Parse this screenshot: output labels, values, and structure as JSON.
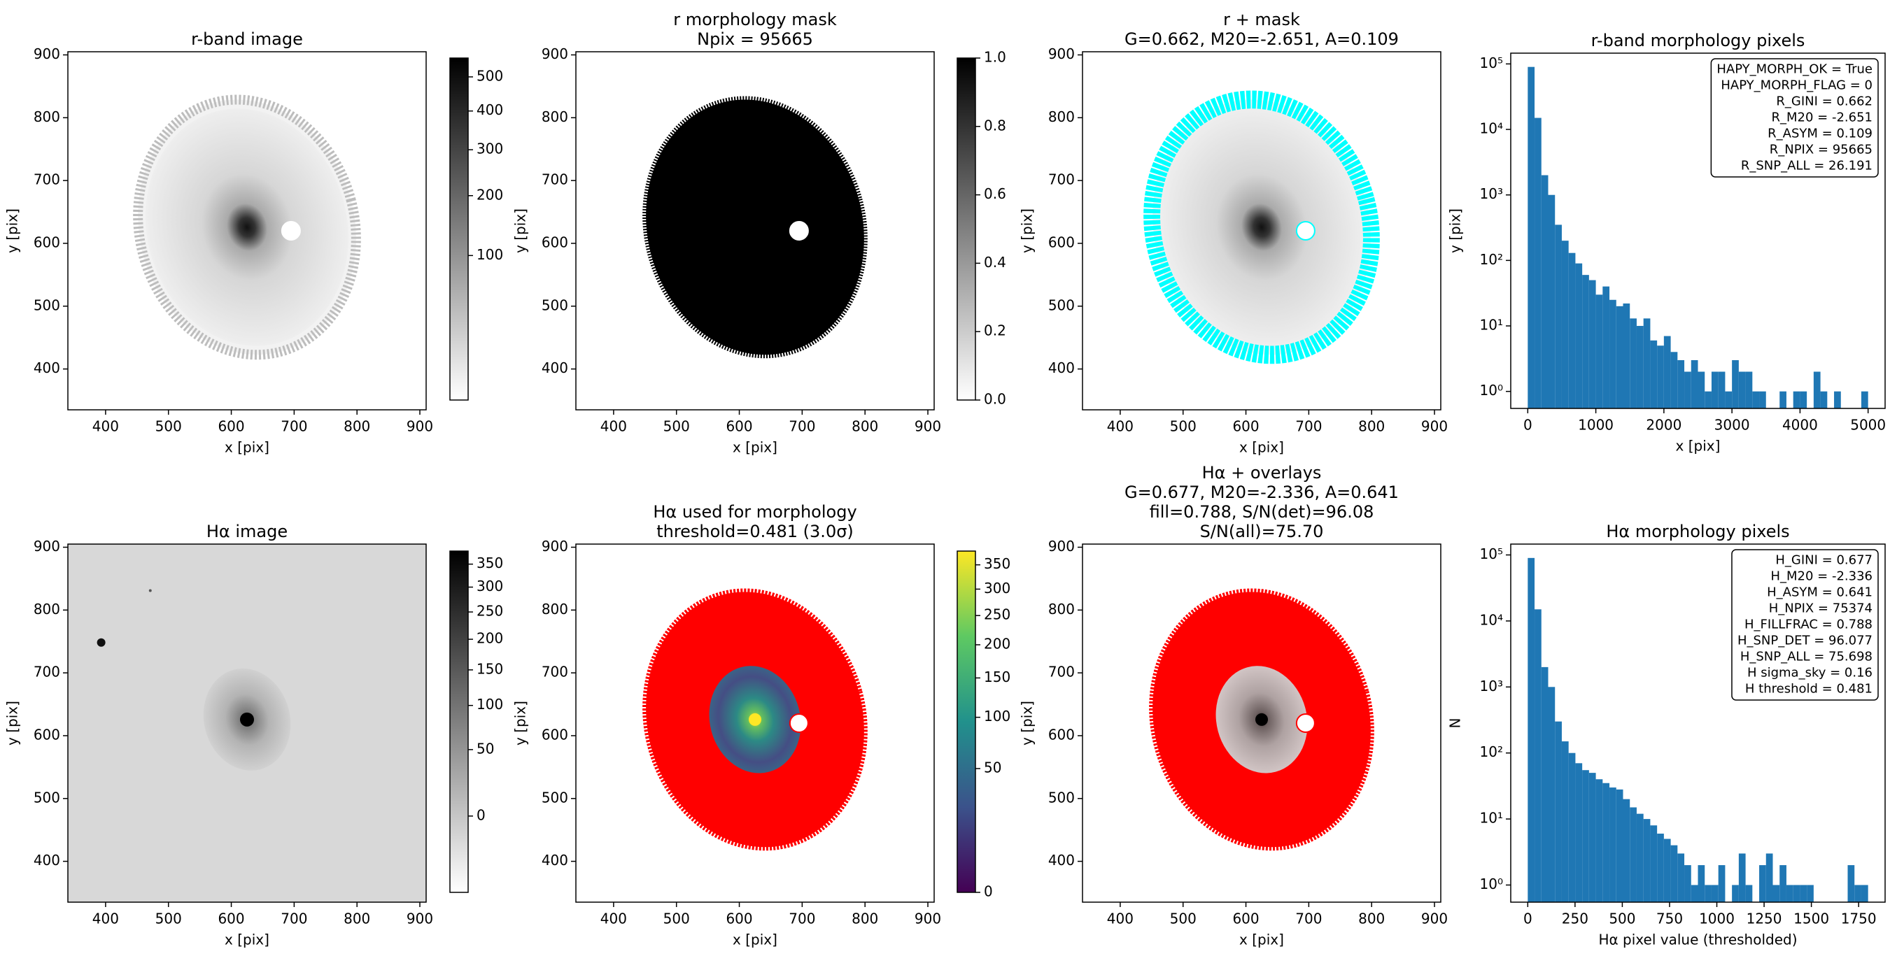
{
  "chart_data": [
    {
      "type": "image",
      "title": [
        "r-band image"
      ],
      "xlabel": "x [pix]",
      "ylabel": "y [pix]",
      "xlim": [
        340,
        910
      ],
      "ylim": [
        335,
        905
      ],
      "xticks": [
        400,
        500,
        600,
        700,
        800,
        900
      ],
      "yticks": [
        400,
        500,
        600,
        700,
        800,
        900
      ],
      "marker": {
        "x": 695,
        "y": 620
      },
      "colorbar": {
        "lim": [
          0,
          560
        ],
        "scale": "sqrt",
        "cmap": "gray_r",
        "ticks": [
          100,
          200,
          300,
          400,
          500
        ]
      }
    },
    {
      "type": "image",
      "title": [
        "r morphology mask",
        "Npix = 95665"
      ],
      "xlabel": "x [pix]",
      "ylabel": "y [pix]",
      "xlim": [
        340,
        910
      ],
      "ylim": [
        335,
        905
      ],
      "xticks": [
        400,
        500,
        600,
        700,
        800,
        900
      ],
      "yticks": [
        400,
        500,
        600,
        700,
        800,
        900
      ],
      "marker": {
        "x": 695,
        "y": 620
      },
      "colorbar": {
        "lim": [
          0,
          1
        ],
        "scale": "linear",
        "cmap": "gray_r",
        "ticks": [
          {
            "value": 0,
            "label": "0.0"
          },
          {
            "value": 0.2,
            "label": "0.2"
          },
          {
            "value": 0.4,
            "label": "0.4"
          },
          {
            "value": 0.6,
            "label": "0.6"
          },
          {
            "value": 0.8,
            "label": "0.8"
          },
          {
            "value": 1,
            "label": "1.0"
          }
        ]
      }
    },
    {
      "type": "image",
      "title": [
        "r + mask",
        "G=0.662, M20=-2.651, A=0.109"
      ],
      "xlabel": "x [pix]",
      "ylabel": "y [pix]",
      "xlim": [
        340,
        910
      ],
      "ylim": [
        335,
        905
      ],
      "xticks": [
        400,
        500,
        600,
        700,
        800,
        900
      ],
      "yticks": [
        400,
        500,
        600,
        700,
        800,
        900
      ],
      "marker": {
        "x": 695,
        "y": 620
      }
    },
    {
      "type": "histogram",
      "title": [
        "r-band morphology pixels"
      ],
      "xlabel": "x [pix]",
      "ylabel": "y [pix]",
      "color": "#1f77b4",
      "bins": [
        0,
        100,
        200,
        300,
        400,
        500,
        600,
        700,
        800,
        900,
        1000,
        1100,
        1200,
        1300,
        1400,
        1500,
        1600,
        1700,
        1800,
        1900,
        2000,
        2100,
        2200,
        2300,
        2400,
        2500,
        2600,
        2700,
        2800,
        2900,
        3000,
        3100,
        3200,
        3300,
        3400,
        3500,
        3600,
        3700,
        3800,
        3900,
        4000,
        4100,
        4200,
        4300,
        4400,
        4500,
        4600,
        4700,
        4800,
        4900,
        5000
      ],
      "counts": [
        90000,
        15000,
        2000,
        1000,
        350,
        200,
        130,
        90,
        60,
        50,
        30,
        40,
        25,
        20,
        22,
        13,
        10,
        13,
        6,
        5,
        7,
        4,
        3,
        2,
        3,
        2,
        1,
        2,
        2,
        1,
        3,
        2,
        2,
        1,
        1,
        0,
        0,
        1,
        0,
        1,
        1,
        0,
        2,
        1,
        0,
        1,
        0,
        0,
        0,
        1
      ],
      "xlim": [
        -250,
        5250
      ],
      "ylim": [
        0.55,
        146000
      ],
      "yscale": "log",
      "xticks": [
        0,
        1000,
        2000,
        3000,
        4000,
        5000
      ],
      "yticks": [
        {
          "value": 1,
          "label": "10⁰"
        },
        {
          "value": 10,
          "label": "10¹"
        },
        {
          "value": 100,
          "label": "10²"
        },
        {
          "value": 1000,
          "label": "10³"
        },
        {
          "value": 10000,
          "label": "10⁴"
        },
        {
          "value": 100000,
          "label": "10⁵"
        }
      ],
      "annotation": [
        "HAPY_MORPH_OK = True",
        "HAPY_MORPH_FLAG = 0",
        "R_GINI = 0.662",
        "R_M20 = -2.651",
        "R_ASYM = 0.109",
        "R_NPIX = 95665",
        "R_SNP_ALL = 26.191"
      ]
    },
    {
      "type": "image",
      "title": [
        "Hα image"
      ],
      "xlabel": "x [pix]",
      "ylabel": "y [pix]",
      "xlim": [
        340,
        910
      ],
      "ylim": [
        335,
        905
      ],
      "xticks": [
        400,
        500,
        600,
        700,
        800,
        900
      ],
      "yticks": [
        400,
        500,
        600,
        700,
        800,
        900
      ],
      "colorbar": {
        "lim": [
          -20,
          380
        ],
        "scale": "sqrt",
        "cmap": "gray_r",
        "ticks": [
          0,
          50,
          100,
          150,
          200,
          250,
          300,
          350
        ]
      }
    },
    {
      "type": "image",
      "title": [
        "Hα used for morphology",
        "threshold=0.481 (3.0σ)"
      ],
      "xlabel": "x [pix]",
      "ylabel": "y [pix]",
      "xlim": [
        340,
        910
      ],
      "ylim": [
        335,
        905
      ],
      "xticks": [
        400,
        500,
        600,
        700,
        800,
        900
      ],
      "yticks": [
        400,
        500,
        600,
        700,
        800,
        900
      ],
      "marker": {
        "x": 695,
        "y": 620
      },
      "colorbar": {
        "lim": [
          0,
          380
        ],
        "scale": "sqrt",
        "cmap": "viridis",
        "ticks": [
          0,
          50,
          100,
          150,
          200,
          250,
          300,
          350
        ]
      }
    },
    {
      "type": "image",
      "title": [
        "Hα + overlays",
        "G=0.677, M20=-2.336, A=0.641",
        "fill=0.788, S/N(det)=96.08",
        "S/N(all)=75.70"
      ],
      "xlabel": "x [pix]",
      "ylabel": "y [pix]",
      "xlim": [
        340,
        910
      ],
      "ylim": [
        335,
        905
      ],
      "xticks": [
        400,
        500,
        600,
        700,
        800,
        900
      ],
      "yticks": [
        400,
        500,
        600,
        700,
        800,
        900
      ],
      "marker": {
        "x": 695,
        "y": 620
      }
    },
    {
      "type": "histogram",
      "title": [
        "Hα morphology pixels"
      ],
      "xlabel": "Hα pixel value (thresholded)",
      "ylabel": "N",
      "color": "#1f77b4",
      "bins": [
        0,
        36,
        72,
        108,
        144,
        180,
        216,
        252,
        288,
        324,
        360,
        396,
        432,
        468,
        504,
        540,
        576,
        612,
        648,
        684,
        720,
        756,
        792,
        828,
        864,
        900,
        936,
        972,
        1008,
        1044,
        1080,
        1116,
        1152,
        1188,
        1224,
        1260,
        1296,
        1332,
        1368,
        1404,
        1440,
        1476,
        1512,
        1548,
        1584,
        1620,
        1656,
        1692,
        1728,
        1764,
        1800
      ],
      "counts": [
        90000,
        15000,
        2000,
        1000,
        300,
        150,
        100,
        70,
        55,
        50,
        40,
        35,
        30,
        28,
        20,
        15,
        12,
        10,
        8,
        6,
        5,
        4,
        3,
        2,
        1,
        2,
        1,
        1,
        2,
        0,
        1,
        3,
        1,
        0,
        2,
        3,
        1,
        2,
        1,
        1,
        1,
        1,
        0,
        0,
        0,
        0,
        0,
        2,
        1,
        1
      ],
      "xlim": [
        -90,
        1890
      ],
      "ylim": [
        0.55,
        146000
      ],
      "yscale": "log",
      "xticks": [
        0,
        250,
        500,
        750,
        1000,
        1250,
        1500,
        1750
      ],
      "yticks": [
        {
          "value": 1,
          "label": "10⁰"
        },
        {
          "value": 10,
          "label": "10¹"
        },
        {
          "value": 100,
          "label": "10²"
        },
        {
          "value": 1000,
          "label": "10³"
        },
        {
          "value": 10000,
          "label": "10⁴"
        },
        {
          "value": 100000,
          "label": "10⁵"
        }
      ],
      "annotation": [
        "H_GINI = 0.677",
        "H_M20 = -2.336",
        "H_ASYM = 0.641",
        "H_NPIX = 75374",
        "H_FILLFRAC = 0.788",
        "H_SNP_DET = 96.077",
        "H_SNP_ALL = 75.698",
        "H sigma_sky = 0.16",
        "H threshold = 0.481"
      ]
    }
  ]
}
